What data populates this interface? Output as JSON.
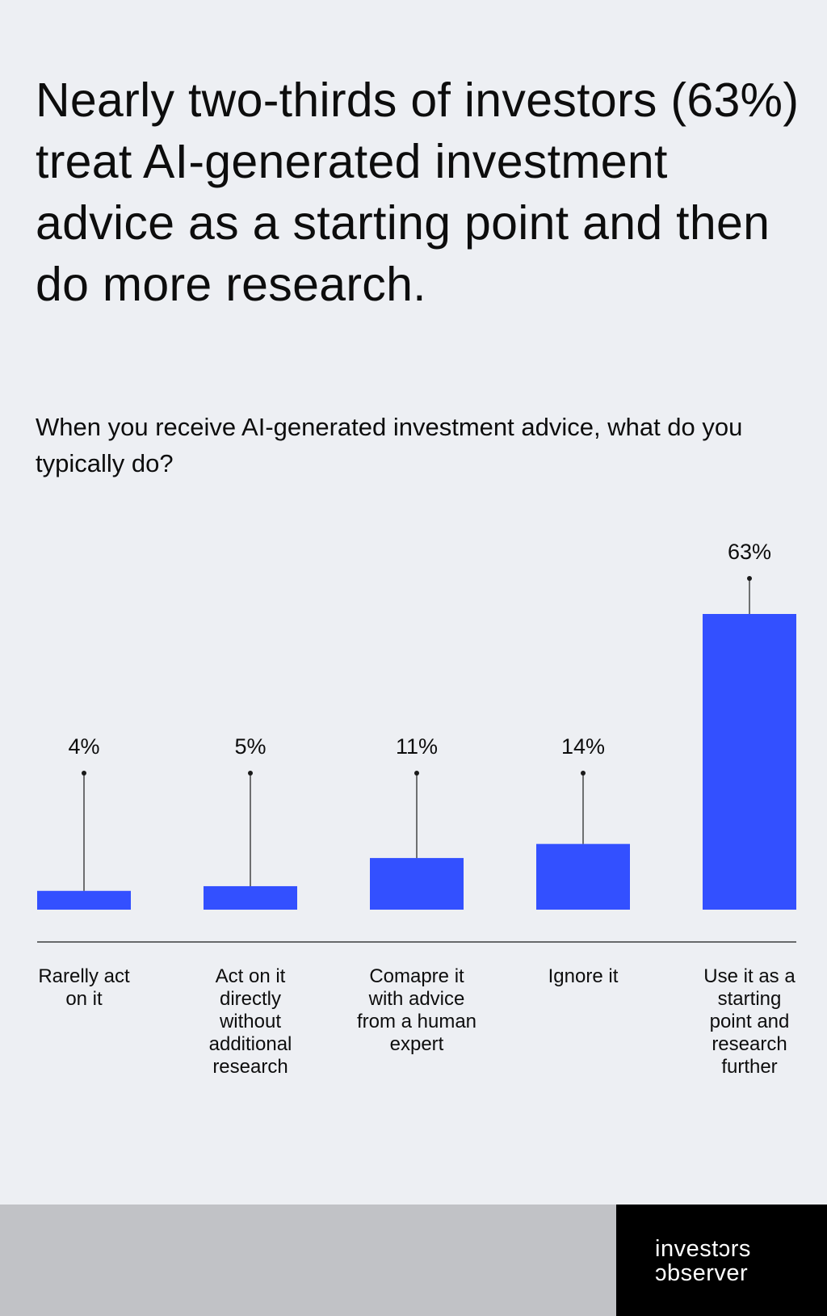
{
  "headline": "Nearly two-thirds of investors (63%) treat AI-generated investment advice as a starting point and then do more research.",
  "question": "When you receive AI-generated investment advice, what do you typically do?",
  "chart_data": {
    "type": "bar",
    "categories": [
      "Rarelly act on it",
      "Act on it directly without additional research",
      "Comapre it with advice from a human expert",
      "Ignore it",
      "Use it as a starting point and research further"
    ],
    "values": [
      4,
      5,
      11,
      14,
      63
    ],
    "value_labels": [
      "4%",
      "5%",
      "11%",
      "14%",
      "63%"
    ],
    "unit": "%",
    "ylim": [
      0,
      63
    ],
    "grid": false,
    "bar_color": "#3350ff"
  },
  "brand": {
    "line1": "investɔrs",
    "line2": "ɔbserver",
    "background": "#000000"
  }
}
